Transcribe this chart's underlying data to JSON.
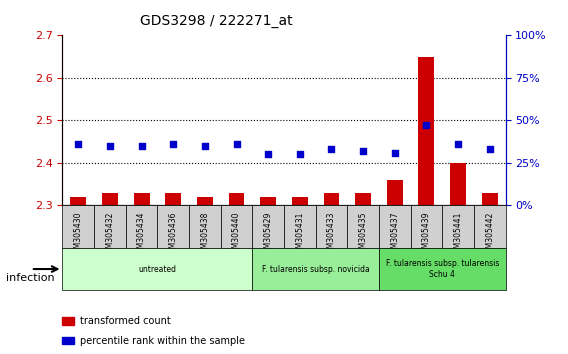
{
  "title": "GDS3298 / 222271_at",
  "samples": [
    "GSM305430",
    "GSM305432",
    "GSM305434",
    "GSM305436",
    "GSM305438",
    "GSM305440",
    "GSM305429",
    "GSM305431",
    "GSM305433",
    "GSM305435",
    "GSM305437",
    "GSM305439",
    "GSM305441",
    "GSM305442"
  ],
  "transformed_count": [
    2.32,
    2.33,
    2.33,
    2.33,
    2.32,
    2.33,
    2.32,
    2.32,
    2.33,
    2.33,
    2.36,
    2.65,
    2.4,
    2.33
  ],
  "percentile_rank": [
    36,
    35,
    35,
    36,
    35,
    36,
    30,
    30,
    33,
    32,
    31,
    47,
    36,
    33
  ],
  "ylim_left": [
    2.3,
    2.7
  ],
  "ylim_right": [
    0,
    100
  ],
  "yticks_left": [
    2.3,
    2.4,
    2.5,
    2.6,
    2.7
  ],
  "yticks_right": [
    0,
    25,
    50,
    75,
    100
  ],
  "groups": [
    {
      "label": "untreated",
      "start": 0,
      "end": 6,
      "color": "#ccffcc"
    },
    {
      "label": "F. tularensis subsp. novicida",
      "start": 6,
      "end": 10,
      "color": "#99ee99"
    },
    {
      "label": "F. tularensis subsp. tularensis\nSchu 4",
      "start": 10,
      "end": 14,
      "color": "#66dd66"
    }
  ],
  "bar_color": "#cc0000",
  "dot_color": "#0000cc",
  "infection_label": "infection",
  "legend_items": [
    {
      "label": "transformed count",
      "color": "#cc0000",
      "marker": "s"
    },
    {
      "label": "percentile rank within the sample",
      "color": "#0000cc",
      "marker": "s"
    }
  ],
  "grid_color": "#000000",
  "background_color": "#ffffff",
  "plot_bg": "#ffffff",
  "tick_color_left": "#cc0000",
  "tick_color_right": "#0000cc"
}
